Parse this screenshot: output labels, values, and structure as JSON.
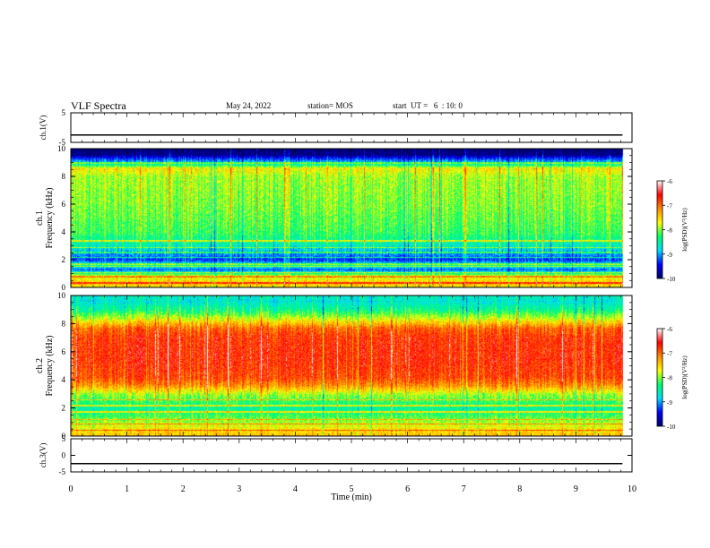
{
  "header": {
    "title": "VLF Spectra",
    "date": "May 24, 2022",
    "station": "station= MOS",
    "start": "start  UT =   6  : 10: 0"
  },
  "chart_data": [
    {
      "type": "line",
      "panel": "ch1-waveform",
      "ylabel": "ch.1(V)",
      "ylim": [
        -5,
        5
      ],
      "yticks": [
        5,
        -5
      ],
      "xlim": [
        0,
        10
      ],
      "note": "flat trace",
      "level": -2.5
    },
    {
      "type": "heatmap",
      "panel": "ch1-spectrogram",
      "ylabel": "ch.1\nFrequency (kHz)",
      "ylabel_line1": "ch.1",
      "ylabel_line2": "Frequency (kHz)",
      "ylim": [
        0,
        10
      ],
      "yticks": [
        0,
        2,
        4,
        6,
        8,
        10
      ],
      "xlim": [
        0,
        10
      ],
      "data_end_min": 9.83,
      "colorbar": {
        "label": "log(PSD)(V²/Hz)",
        "range": [
          -10,
          -6
        ],
        "ticks": [
          "-6",
          "-7",
          "-8",
          "-9",
          "-10"
        ],
        "colors": [
          "#000066",
          "#0000ff",
          "#00ddff",
          "#00ff66",
          "#ffff00",
          "#ff8800",
          "#ff0000",
          "#ffffff"
        ]
      },
      "profile_kHz": [
        [
          0.0,
          -7.7
        ],
        [
          0.3,
          -7.4
        ],
        [
          0.9,
          -7.9
        ],
        [
          1.3,
          -9.2
        ],
        [
          1.6,
          -8.5
        ],
        [
          2.0,
          -9.3
        ],
        [
          2.5,
          -9.0
        ],
        [
          3.0,
          -8.6
        ],
        [
          4.0,
          -8.2
        ],
        [
          6.0,
          -8.0
        ],
        [
          8.0,
          -7.9
        ],
        [
          8.6,
          -7.6
        ],
        [
          9.0,
          -8.8
        ],
        [
          9.3,
          -9.3
        ],
        [
          9.6,
          -9.9
        ],
        [
          10.0,
          -10.0
        ]
      ]
    },
    {
      "type": "heatmap",
      "panel": "ch2-spectrogram",
      "ylabel": "ch.2\nFrequency (kHz)",
      "ylabel_line1": "ch.2",
      "ylabel_line2": "Frequency (kHz)",
      "ylim": [
        0,
        10
      ],
      "yticks": [
        0,
        2,
        4,
        6,
        8,
        10
      ],
      "xlim": [
        0,
        10
      ],
      "data_end_min": 9.83,
      "colorbar": {
        "label": "log(PSD)(V²/Hz)",
        "range": [
          -10,
          -6
        ],
        "ticks": [
          "-6",
          "-7",
          "-8",
          "-9",
          "-10"
        ],
        "colors": [
          "#000066",
          "#0000ff",
          "#00ddff",
          "#00ff66",
          "#ffff00",
          "#ff8800",
          "#ff0000",
          "#ffffff"
        ]
      },
      "profile_kHz": [
        [
          0.0,
          -7.4
        ],
        [
          0.5,
          -7.6
        ],
        [
          1.0,
          -7.9
        ],
        [
          2.0,
          -8.5
        ],
        [
          3.0,
          -7.9
        ],
        [
          3.6,
          -7.2
        ],
        [
          4.2,
          -6.85
        ],
        [
          5.5,
          -6.7
        ],
        [
          7.0,
          -6.75
        ],
        [
          7.7,
          -7.0
        ],
        [
          8.3,
          -7.7
        ],
        [
          9.0,
          -8.4
        ],
        [
          9.6,
          -8.7
        ],
        [
          10.0,
          -8.6
        ]
      ]
    },
    {
      "type": "line",
      "panel": "ch3-waveform",
      "ylabel": "ch.3(V)",
      "ylim": [
        -5,
        5
      ],
      "yticks": [
        5,
        0,
        -5
      ],
      "xlim": [
        0,
        10
      ],
      "note": "flat trace",
      "level": -2.5
    }
  ],
  "xaxis": {
    "label": "Time (min)",
    "ticks": [
      "0",
      "1",
      "2",
      "3",
      "4",
      "5",
      "6",
      "7",
      "8",
      "9",
      "10"
    ]
  }
}
